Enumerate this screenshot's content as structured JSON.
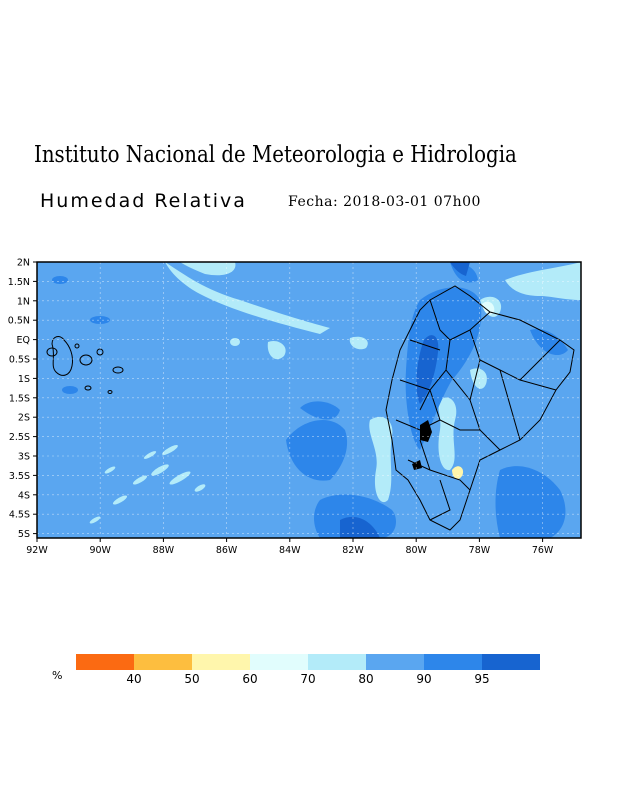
{
  "title": "Instituto Nacional de Meteorologia e Hidrologia",
  "subtitle": "Humedad Relativa",
  "fecha": "Fecha: 2018-03-01 07h00",
  "map": {
    "lat_labels": [
      "2N",
      "1.5N",
      "1N",
      "0.5N",
      "EQ",
      "0.5S",
      "1S",
      "1.5S",
      "2S",
      "2.5S",
      "3S",
      "3.5S",
      "4S",
      "4.5S",
      "5S"
    ],
    "lon_labels": [
      "92W",
      "90W",
      "88W",
      "86W",
      "84W",
      "82W",
      "80W",
      "78W",
      "76W"
    ],
    "base_color": "#5aa6f0"
  },
  "legend": {
    "unit": "%",
    "colors": [
      "#fb6a12",
      "#fdbe3f",
      "#fff6ac",
      "#e1fdfd",
      "#b3ebf9",
      "#5aa6f0",
      "#2d86ea",
      "#1764d0"
    ],
    "labels": [
      "40",
      "50",
      "60",
      "70",
      "80",
      "90",
      "95"
    ]
  }
}
